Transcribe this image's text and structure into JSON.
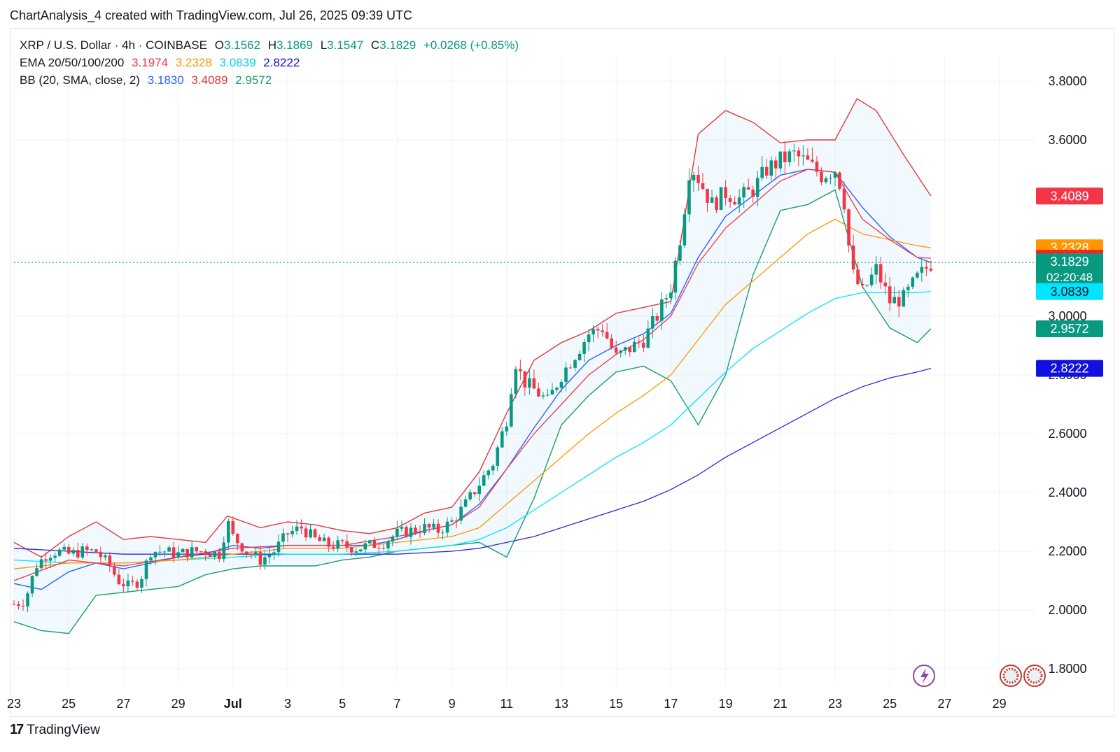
{
  "caption": "ChartAnalysis_4 created with TradingView.com, Jul 26, 2025 09:39 UTC",
  "legend": {
    "symbol": "XRP / U.S. Dollar · 4h · COINBASE",
    "o_label": "O",
    "o": "3.1562",
    "h_label": "H",
    "h": "3.1869",
    "l_label": "L",
    "l": "3.1547",
    "c_label": "C",
    "c": "3.1829",
    "change": "+0.0268 (+0.85%)",
    "ema_label": "EMA 20/50/100/200",
    "ema20": "3.1974",
    "ema50": "3.2328",
    "ema100": "3.0839",
    "ema200": "2.8222",
    "bb_label": "BB (20, SMA, close, 2)",
    "bb_basis": "3.1830",
    "bb_upper": "3.4089",
    "bb_lower": "2.9572"
  },
  "footer": {
    "logo": "17",
    "brand": "TradingView"
  },
  "colors": {
    "up": "#089981",
    "down": "#f23645",
    "ema20": "#f23645",
    "ema50": "#ff9800",
    "ema100": "#00e5ff",
    "ema200": "#2a2ad8",
    "bb_basis": "#2962ff",
    "bb_upper": "#e53935",
    "bb_lower": "#1b9e6b"
  },
  "chart_data": {
    "type": "candlestick",
    "symbol": "XRP/USD",
    "interval": "4h",
    "ylim": [
      1.72,
      3.95
    ],
    "y_ticks": [
      "3.8000",
      "3.6000",
      "3.0000",
      "2.8000",
      "2.6000",
      "2.4000",
      "2.2000",
      "2.0000",
      "1.8000"
    ],
    "x_ticks": [
      {
        "label": "23",
        "day": 0
      },
      {
        "label": "25",
        "day": 2
      },
      {
        "label": "27",
        "day": 4
      },
      {
        "label": "29",
        "day": 6
      },
      {
        "label": "Jul",
        "day": 8,
        "bold": true
      },
      {
        "label": "3",
        "day": 10
      },
      {
        "label": "5",
        "day": 12
      },
      {
        "label": "7",
        "day": 14
      },
      {
        "label": "9",
        "day": 16
      },
      {
        "label": "11",
        "day": 18
      },
      {
        "label": "13",
        "day": 20
      },
      {
        "label": "15",
        "day": 22
      },
      {
        "label": "17",
        "day": 24
      },
      {
        "label": "19",
        "day": 26
      },
      {
        "label": "21",
        "day": 28
      },
      {
        "label": "23",
        "day": 30
      },
      {
        "label": "25",
        "day": 32
      },
      {
        "label": "27",
        "day": 34
      },
      {
        "label": "29",
        "day": 36
      }
    ],
    "close_path": [
      [
        0,
        2.02
      ],
      [
        0.4,
        2.03
      ],
      [
        0.8,
        2.15
      ],
      [
        1.2,
        2.19
      ],
      [
        1.6,
        2.2
      ],
      [
        2,
        2.19
      ],
      [
        2.5,
        2.2
      ],
      [
        3,
        2.2
      ],
      [
        3.5,
        2.15
      ],
      [
        3.8,
        2.1
      ],
      [
        4.2,
        2.08
      ],
      [
        4.6,
        2.1
      ],
      [
        5,
        2.2
      ],
      [
        5.5,
        2.2
      ],
      [
        6,
        2.19
      ],
      [
        6.5,
        2.2
      ],
      [
        7,
        2.2
      ],
      [
        7.5,
        2.19
      ],
      [
        7.8,
        2.3
      ],
      [
        8,
        2.25
      ],
      [
        8.5,
        2.2
      ],
      [
        9,
        2.17
      ],
      [
        9.5,
        2.2
      ],
      [
        10,
        2.26
      ],
      [
        10.5,
        2.28
      ],
      [
        11,
        2.24
      ],
      [
        11.5,
        2.22
      ],
      [
        12,
        2.22
      ],
      [
        12.5,
        2.21
      ],
      [
        13,
        2.22
      ],
      [
        13.5,
        2.23
      ],
      [
        14,
        2.26
      ],
      [
        14.5,
        2.27
      ],
      [
        15,
        2.28
      ],
      [
        15.5,
        2.27
      ],
      [
        16,
        2.3
      ],
      [
        16.5,
        2.36
      ],
      [
        17,
        2.43
      ],
      [
        17.5,
        2.5
      ],
      [
        18,
        2.65
      ],
      [
        18.3,
        2.85
      ],
      [
        18.6,
        2.78
      ],
      [
        19,
        2.75
      ],
      [
        19.5,
        2.71
      ],
      [
        20,
        2.8
      ],
      [
        20.5,
        2.87
      ],
      [
        21,
        2.94
      ],
      [
        21.5,
        2.96
      ],
      [
        22,
        2.86
      ],
      [
        22.5,
        2.89
      ],
      [
        23,
        2.92
      ],
      [
        23.5,
        3.0
      ],
      [
        24,
        3.1
      ],
      [
        24.4,
        3.3
      ],
      [
        24.7,
        3.52
      ],
      [
        25,
        3.47
      ],
      [
        25.5,
        3.38
      ],
      [
        26,
        3.42
      ],
      [
        26.5,
        3.4
      ],
      [
        27,
        3.43
      ],
      [
        27.5,
        3.5
      ],
      [
        28,
        3.53
      ],
      [
        28.5,
        3.55
      ],
      [
        29,
        3.52
      ],
      [
        29.5,
        3.48
      ],
      [
        30,
        3.5
      ],
      [
        30.3,
        3.42
      ],
      [
        30.6,
        3.15
      ],
      [
        31,
        3.08
      ],
      [
        31.5,
        3.16
      ],
      [
        32,
        3.05
      ],
      [
        32.5,
        3.06
      ],
      [
        33,
        3.13
      ],
      [
        33.5,
        3.18
      ]
    ],
    "ema20": [
      [
        0,
        2.1
      ],
      [
        2,
        2.17
      ],
      [
        4,
        2.15
      ],
      [
        6,
        2.18
      ],
      [
        8,
        2.21
      ],
      [
        10,
        2.22
      ],
      [
        12,
        2.22
      ],
      [
        14,
        2.25
      ],
      [
        16,
        2.29
      ],
      [
        17,
        2.35
      ],
      [
        18,
        2.48
      ],
      [
        19,
        2.6
      ],
      [
        20,
        2.7
      ],
      [
        21,
        2.8
      ],
      [
        22,
        2.87
      ],
      [
        23,
        2.92
      ],
      [
        24,
        3.0
      ],
      [
        25,
        3.18
      ],
      [
        26,
        3.3
      ],
      [
        27,
        3.38
      ],
      [
        28,
        3.46
      ],
      [
        29,
        3.5
      ],
      [
        30,
        3.49
      ],
      [
        31,
        3.33
      ],
      [
        32,
        3.26
      ],
      [
        33,
        3.2
      ],
      [
        33.5,
        3.1974
      ]
    ],
    "ema50": [
      [
        0,
        2.14
      ],
      [
        2,
        2.16
      ],
      [
        4,
        2.16
      ],
      [
        6,
        2.17
      ],
      [
        8,
        2.19
      ],
      [
        10,
        2.21
      ],
      [
        12,
        2.21
      ],
      [
        14,
        2.23
      ],
      [
        16,
        2.25
      ],
      [
        17,
        2.28
      ],
      [
        18,
        2.36
      ],
      [
        19,
        2.44
      ],
      [
        20,
        2.52
      ],
      [
        21,
        2.6
      ],
      [
        22,
        2.67
      ],
      [
        23,
        2.73
      ],
      [
        24,
        2.8
      ],
      [
        25,
        2.92
      ],
      [
        26,
        3.04
      ],
      [
        27,
        3.12
      ],
      [
        28,
        3.2
      ],
      [
        29,
        3.28
      ],
      [
        30,
        3.33
      ],
      [
        31,
        3.28
      ],
      [
        32,
        3.26
      ],
      [
        33,
        3.24
      ],
      [
        33.5,
        3.2328
      ]
    ],
    "ema100": [
      [
        0,
        2.17
      ],
      [
        2,
        2.16
      ],
      [
        4,
        2.16
      ],
      [
        6,
        2.17
      ],
      [
        8,
        2.18
      ],
      [
        10,
        2.19
      ],
      [
        12,
        2.19
      ],
      [
        14,
        2.2
      ],
      [
        16,
        2.22
      ],
      [
        17,
        2.24
      ],
      [
        18,
        2.28
      ],
      [
        19,
        2.34
      ],
      [
        20,
        2.4
      ],
      [
        21,
        2.46
      ],
      [
        22,
        2.52
      ],
      [
        23,
        2.57
      ],
      [
        24,
        2.63
      ],
      [
        25,
        2.72
      ],
      [
        26,
        2.81
      ],
      [
        27,
        2.89
      ],
      [
        28,
        2.95
      ],
      [
        29,
        3.01
      ],
      [
        30,
        3.06
      ],
      [
        31,
        3.08
      ],
      [
        32,
        3.08
      ],
      [
        33,
        3.08
      ],
      [
        33.5,
        3.0839
      ]
    ],
    "ema200": [
      [
        0,
        2.21
      ],
      [
        2,
        2.2
      ],
      [
        4,
        2.19
      ],
      [
        6,
        2.19
      ],
      [
        8,
        2.19
      ],
      [
        10,
        2.19
      ],
      [
        12,
        2.19
      ],
      [
        14,
        2.19
      ],
      [
        16,
        2.2
      ],
      [
        17,
        2.21
      ],
      [
        18,
        2.23
      ],
      [
        19,
        2.25
      ],
      [
        20,
        2.28
      ],
      [
        21,
        2.31
      ],
      [
        22,
        2.34
      ],
      [
        23,
        2.37
      ],
      [
        24,
        2.41
      ],
      [
        25,
        2.46
      ],
      [
        26,
        2.52
      ],
      [
        27,
        2.57
      ],
      [
        28,
        2.62
      ],
      [
        29,
        2.67
      ],
      [
        30,
        2.72
      ],
      [
        31,
        2.76
      ],
      [
        32,
        2.79
      ],
      [
        33,
        2.81
      ],
      [
        33.5,
        2.8222
      ]
    ],
    "bb_upper": [
      [
        0,
        2.23
      ],
      [
        1,
        2.18
      ],
      [
        2,
        2.25
      ],
      [
        3,
        2.3
      ],
      [
        4,
        2.24
      ],
      [
        5,
        2.25
      ],
      [
        6,
        2.24
      ],
      [
        7,
        2.23
      ],
      [
        7.8,
        2.32
      ],
      [
        9,
        2.28
      ],
      [
        10,
        2.3
      ],
      [
        11,
        2.29
      ],
      [
        12,
        2.27
      ],
      [
        13,
        2.26
      ],
      [
        14,
        2.28
      ],
      [
        15,
        2.33
      ],
      [
        16,
        2.35
      ],
      [
        17,
        2.47
      ],
      [
        18,
        2.67
      ],
      [
        19,
        2.85
      ],
      [
        20,
        2.91
      ],
      [
        21,
        2.95
      ],
      [
        22,
        3.01
      ],
      [
        23,
        3.03
      ],
      [
        24,
        3.05
      ],
      [
        25,
        3.62
      ],
      [
        26,
        3.7
      ],
      [
        27,
        3.66
      ],
      [
        28,
        3.59
      ],
      [
        29,
        3.6
      ],
      [
        30,
        3.6
      ],
      [
        30.8,
        3.74
      ],
      [
        31.5,
        3.7
      ],
      [
        32.5,
        3.55
      ],
      [
        33.5,
        3.4089
      ]
    ],
    "bb_basis": [
      [
        0,
        2.09
      ],
      [
        1,
        2.07
      ],
      [
        2,
        2.13
      ],
      [
        3,
        2.16
      ],
      [
        4,
        2.14
      ],
      [
        5,
        2.16
      ],
      [
        6,
        2.18
      ],
      [
        7,
        2.19
      ],
      [
        8,
        2.22
      ],
      [
        9,
        2.21
      ],
      [
        10,
        2.22
      ],
      [
        11,
        2.22
      ],
      [
        12,
        2.22
      ],
      [
        13,
        2.22
      ],
      [
        14,
        2.24
      ],
      [
        15,
        2.27
      ],
      [
        16,
        2.29
      ],
      [
        17,
        2.36
      ],
      [
        18,
        2.48
      ],
      [
        19,
        2.62
      ],
      [
        20,
        2.75
      ],
      [
        21,
        2.85
      ],
      [
        22,
        2.9
      ],
      [
        23,
        2.94
      ],
      [
        24,
        3.01
      ],
      [
        25,
        3.2
      ],
      [
        26,
        3.34
      ],
      [
        27,
        3.41
      ],
      [
        28,
        3.48
      ],
      [
        29,
        3.5
      ],
      [
        30,
        3.49
      ],
      [
        31,
        3.37
      ],
      [
        32,
        3.27
      ],
      [
        33,
        3.2
      ],
      [
        33.5,
        3.183
      ]
    ],
    "bb_lower": [
      [
        0,
        1.96
      ],
      [
        1,
        1.93
      ],
      [
        2,
        1.92
      ],
      [
        3,
        2.05
      ],
      [
        4,
        2.06
      ],
      [
        5,
        2.07
      ],
      [
        6,
        2.08
      ],
      [
        7,
        2.12
      ],
      [
        8,
        2.14
      ],
      [
        9,
        2.15
      ],
      [
        10,
        2.15
      ],
      [
        11,
        2.15
      ],
      [
        12,
        2.17
      ],
      [
        13,
        2.18
      ],
      [
        14,
        2.2
      ],
      [
        15,
        2.21
      ],
      [
        16,
        2.22
      ],
      [
        17,
        2.23
      ],
      [
        18,
        2.18
      ],
      [
        19,
        2.38
      ],
      [
        20,
        2.63
      ],
      [
        21,
        2.73
      ],
      [
        22,
        2.81
      ],
      [
        23,
        2.83
      ],
      [
        24,
        2.78
      ],
      [
        25,
        2.63
      ],
      [
        26,
        2.8
      ],
      [
        27,
        3.14
      ],
      [
        28,
        3.36
      ],
      [
        29,
        3.38
      ],
      [
        30,
        3.43
      ],
      [
        31,
        3.1
      ],
      [
        32,
        2.96
      ],
      [
        33,
        2.91
      ],
      [
        33.5,
        2.9572
      ]
    ],
    "price_tags": [
      {
        "value": "3.4089",
        "color": "#f23645",
        "y_pos": 3.4089
      },
      {
        "value": "3.2328",
        "color": "#ff9800",
        "y_pos": 3.2328
      },
      {
        "value": "3.1974",
        "color": "#ff1e1e",
        "y_pos": 3.1974
      },
      {
        "value": "3.1830",
        "color": "#2962ff",
        "y_pos": 3.143
      },
      {
        "value": "3.1829",
        "sub": "02:20:48",
        "color": "#089981",
        "y_pos": 3.1829
      },
      {
        "value": "3.0839",
        "color": "#00e5ff",
        "y_pos": 3.0839,
        "text": "#131722"
      },
      {
        "value": "2.9572",
        "color": "#089981",
        "y_pos": 2.9572
      },
      {
        "value": "2.8222",
        "color": "#1010e0",
        "y_pos": 2.8222
      }
    ]
  }
}
